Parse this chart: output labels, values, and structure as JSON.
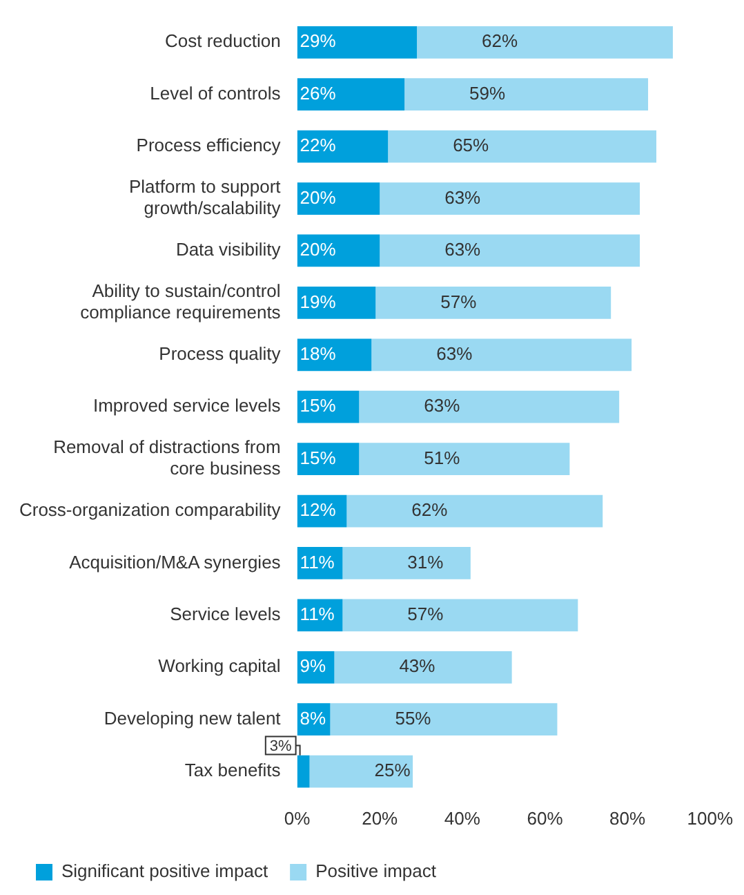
{
  "chart_data": {
    "type": "bar",
    "orientation": "horizontal",
    "stacked": true,
    "categories": [
      "Cost reduction",
      "Level of controls",
      "Process efficiency",
      "Platform to support growth/scalability",
      "Data visibility",
      "Ability to sustain/control compliance requirements",
      "Process quality",
      "Improved service levels",
      "Removal of distractions from core business",
      "Cross-organization comparability",
      "Acquisition/M&A synergies",
      "Service levels",
      "Working capital",
      "Developing new talent",
      "Tax benefits"
    ],
    "series": [
      {
        "name": "Significant positive impact",
        "color": "#00a0dc",
        "values": [
          29,
          26,
          22,
          20,
          20,
          19,
          18,
          15,
          15,
          12,
          11,
          11,
          9,
          8,
          3
        ],
        "value_labels": [
          "29%",
          "26%",
          "22%",
          "20%",
          "20%",
          "19%",
          "18%",
          "15%",
          "15%",
          "12%",
          "11%",
          "11%",
          "9%",
          "8%",
          "3%"
        ]
      },
      {
        "name": "Positive impact",
        "color": "#9ad9f2",
        "values": [
          62,
          59,
          65,
          63,
          63,
          57,
          63,
          63,
          51,
          62,
          31,
          57,
          43,
          55,
          25
        ],
        "value_labels": [
          "62%",
          "59%",
          "65%",
          "63%",
          "63%",
          "57%",
          "63%",
          "63%",
          "51%",
          "62%",
          "31%",
          "57%",
          "43%",
          "55%",
          "25%"
        ]
      }
    ],
    "xlim": [
      0,
      100
    ],
    "xticks": [
      {
        "value": 0,
        "label": "0%"
      },
      {
        "value": 20,
        "label": "20%"
      },
      {
        "value": 40,
        "label": "40%"
      },
      {
        "value": 60,
        "label": "60%"
      },
      {
        "value": 80,
        "label": "80%"
      },
      {
        "value": 100,
        "label": "100%"
      }
    ],
    "grid": false,
    "legend": "bottom left"
  }
}
